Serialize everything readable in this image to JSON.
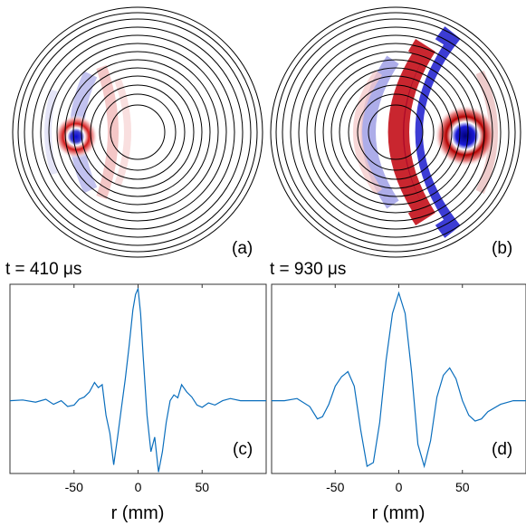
{
  "panels": {
    "a": {
      "label": "(a)",
      "time_label": "t = 410 μs"
    },
    "b": {
      "label": "(b)",
      "time_label": "t = 930 μs"
    },
    "c": {
      "label": "(c)"
    },
    "d": {
      "label": "(d)"
    }
  },
  "colors": {
    "positive": "#c0000a",
    "negative": "#0a0ad2",
    "trace": "#0a6ebd"
  },
  "chart_data": [
    {
      "type": "line",
      "panel": "(c)",
      "xlabel": "r (mm)",
      "ylabel": "",
      "xlim": [
        -100,
        100
      ],
      "ylim": [
        -1.0,
        1.6
      ],
      "xticks": [
        -50,
        0,
        50
      ],
      "xtick_labels": [
        "-50",
        "0",
        "50"
      ],
      "series": [
        {
          "x": [
            -100,
            -90,
            -80,
            -72,
            -66,
            -60,
            -55,
            -50,
            -46,
            -42,
            -38,
            -34,
            -31,
            -28,
            -25,
            -22,
            -19,
            -16,
            -13,
            -10,
            -7,
            -4,
            -2,
            0,
            2,
            4,
            7,
            10,
            13,
            16,
            19,
            22,
            25,
            28,
            31,
            34,
            38,
            42,
            46,
            50,
            55,
            60,
            66,
            72,
            80,
            90,
            100
          ],
          "y": [
            0.0,
            0.01,
            -0.02,
            0.02,
            -0.05,
            0.0,
            -0.08,
            -0.06,
            0.02,
            0.05,
            0.12,
            0.25,
            0.18,
            0.22,
            -0.2,
            -0.45,
            -0.88,
            -0.5,
            -0.1,
            0.3,
            0.75,
            1.25,
            1.46,
            1.54,
            1.2,
            0.6,
            -0.2,
            -0.7,
            -0.5,
            -0.98,
            -0.7,
            -0.3,
            0.0,
            0.08,
            0.04,
            0.22,
            0.12,
            0.05,
            -0.06,
            -0.09,
            -0.03,
            -0.06,
            0.0,
            0.03,
            0.0,
            0.0,
            0.0
          ]
        }
      ]
    },
    {
      "type": "line",
      "panel": "(d)",
      "xlabel": "r (mm)",
      "ylabel": "",
      "xlim": [
        -100,
        100
      ],
      "ylim": [
        -1.0,
        1.6
      ],
      "xticks": [
        -50,
        0,
        50
      ],
      "xtick_labels": [
        "-50",
        "0",
        "50"
      ],
      "series": [
        {
          "x": [
            -100,
            -90,
            -80,
            -70,
            -64,
            -60,
            -55,
            -50,
            -45,
            -40,
            -35,
            -30,
            -25,
            -20,
            -15,
            -10,
            -5,
            0,
            5,
            10,
            15,
            20,
            25,
            30,
            35,
            40,
            45,
            50,
            55,
            60,
            65,
            70,
            80,
            90,
            100
          ],
          "y": [
            0.0,
            0.0,
            0.03,
            -0.08,
            -0.25,
            -0.22,
            -0.05,
            0.2,
            0.33,
            0.4,
            0.2,
            -0.4,
            -0.9,
            -0.85,
            -0.3,
            0.55,
            1.2,
            1.48,
            1.2,
            0.4,
            -0.6,
            -0.9,
            -0.55,
            0.05,
            0.35,
            0.45,
            0.3,
            0.0,
            -0.2,
            -0.28,
            -0.25,
            -0.15,
            -0.05,
            0.0,
            0.0
          ]
        }
      ]
    }
  ]
}
